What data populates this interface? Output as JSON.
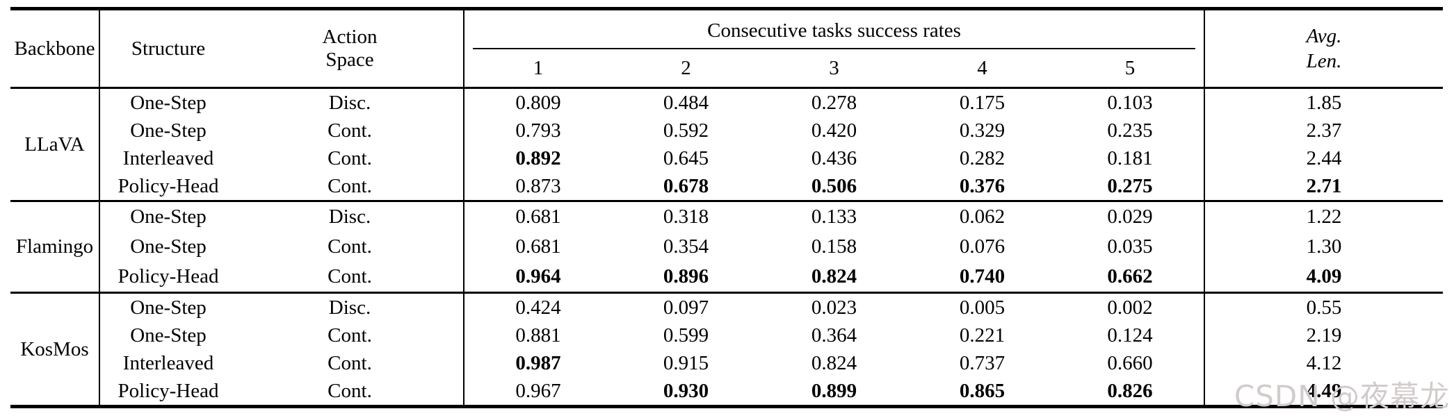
{
  "table": {
    "header": {
      "backbone": "Backbone",
      "structure": "Structure",
      "action_line1": "Action",
      "action_line2": "Space",
      "group": "Consecutive tasks success rates",
      "subcols": [
        "1",
        "2",
        "3",
        "4",
        "5"
      ],
      "avg_line1": "Avg.",
      "avg_line2": "Len."
    },
    "groups": [
      {
        "backbone": "LLaVA",
        "rows": [
          {
            "structure": "One-Step",
            "action": "Disc.",
            "values": [
              "0.809",
              "0.484",
              "0.278",
              "0.175",
              "0.103"
            ],
            "bold": [
              false,
              false,
              false,
              false,
              false
            ],
            "avg": "1.85",
            "avg_bold": false
          },
          {
            "structure": "One-Step",
            "action": "Cont.",
            "values": [
              "0.793",
              "0.592",
              "0.420",
              "0.329",
              "0.235"
            ],
            "bold": [
              false,
              false,
              false,
              false,
              false
            ],
            "avg": "2.37",
            "avg_bold": false
          },
          {
            "structure": "Interleaved",
            "action": "Cont.",
            "values": [
              "0.892",
              "0.645",
              "0.436",
              "0.282",
              "0.181"
            ],
            "bold": [
              true,
              false,
              false,
              false,
              false
            ],
            "avg": "2.44",
            "avg_bold": false
          },
          {
            "structure": "Policy-Head",
            "action": "Cont.",
            "values": [
              "0.873",
              "0.678",
              "0.506",
              "0.376",
              "0.275"
            ],
            "bold": [
              false,
              true,
              true,
              true,
              true
            ],
            "avg": "2.71",
            "avg_bold": true
          }
        ]
      },
      {
        "backbone": "Flamingo",
        "rows": [
          {
            "structure": "One-Step",
            "action": "Disc.",
            "values": [
              "0.681",
              "0.318",
              "0.133",
              "0.062",
              "0.029"
            ],
            "bold": [
              false,
              false,
              false,
              false,
              false
            ],
            "avg": "1.22",
            "avg_bold": false
          },
          {
            "structure": "One-Step",
            "action": "Cont.",
            "values": [
              "0.681",
              "0.354",
              "0.158",
              "0.076",
              "0.035"
            ],
            "bold": [
              false,
              false,
              false,
              false,
              false
            ],
            "avg": "1.30",
            "avg_bold": false
          },
          {
            "structure": "Policy-Head",
            "action": "Cont.",
            "values": [
              "0.964",
              "0.896",
              "0.824",
              "0.740",
              "0.662"
            ],
            "bold": [
              true,
              true,
              true,
              true,
              true
            ],
            "avg": "4.09",
            "avg_bold": true
          }
        ]
      },
      {
        "backbone": "KosMos",
        "rows": [
          {
            "structure": "One-Step",
            "action": "Disc.",
            "values": [
              "0.424",
              "0.097",
              "0.023",
              "0.005",
              "0.002"
            ],
            "bold": [
              false,
              false,
              false,
              false,
              false
            ],
            "avg": "0.55",
            "avg_bold": false
          },
          {
            "structure": "One-Step",
            "action": "Cont.",
            "values": [
              "0.881",
              "0.599",
              "0.364",
              "0.221",
              "0.124"
            ],
            "bold": [
              false,
              false,
              false,
              false,
              false
            ],
            "avg": "2.19",
            "avg_bold": false
          },
          {
            "structure": "Interleaved",
            "action": "Cont.",
            "values": [
              "0.987",
              "0.915",
              "0.824",
              "0.737",
              "0.660"
            ],
            "bold": [
              true,
              false,
              false,
              false,
              false
            ],
            "avg": "4.12",
            "avg_bold": false
          },
          {
            "structure": "Policy-Head",
            "action": "Cont.",
            "values": [
              "0.967",
              "0.930",
              "0.899",
              "0.865",
              "0.826"
            ],
            "bold": [
              false,
              true,
              true,
              true,
              true
            ],
            "avg": "4.49",
            "avg_bold": true
          }
        ]
      }
    ]
  },
  "watermark": {
    "text": "CSDN @夜幕龙",
    "color": "#d2cbcb"
  }
}
